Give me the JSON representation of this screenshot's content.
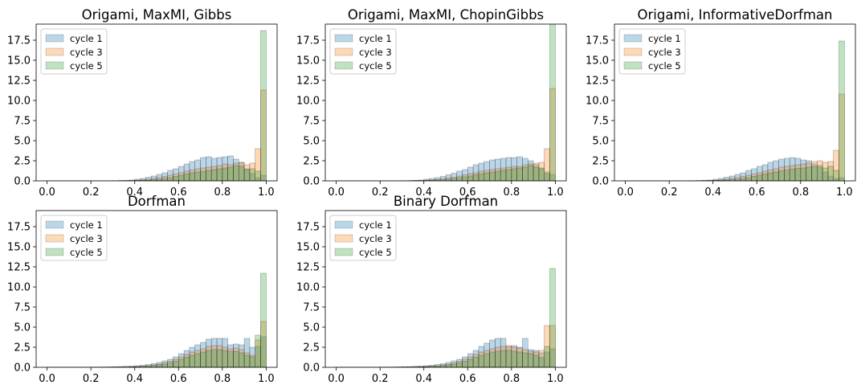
{
  "chart_data": [
    {
      "type": "bar",
      "title": "Origami, MaxMI, Gibbs",
      "x": [
        0.0,
        0.025,
        0.05,
        0.075,
        0.1,
        0.125,
        0.15,
        0.175,
        0.2,
        0.225,
        0.25,
        0.275,
        0.3,
        0.325,
        0.35,
        0.375,
        0.4,
        0.425,
        0.45,
        0.475,
        0.5,
        0.525,
        0.55,
        0.575,
        0.6,
        0.625,
        0.65,
        0.675,
        0.7,
        0.725,
        0.75,
        0.775,
        0.8,
        0.825,
        0.85,
        0.875,
        0.9,
        0.925,
        0.95,
        0.975
      ],
      "xlim": [
        -0.05,
        1.05
      ],
      "ylim": [
        0,
        19.5
      ],
      "xticks": [
        "0.0",
        "0.2",
        "0.4",
        "0.6",
        "0.8",
        "1.0"
      ],
      "yticks": [
        "0.0",
        "2.5",
        "5.0",
        "7.5",
        "10.0",
        "12.5",
        "15.0",
        "17.5"
      ],
      "legend": "upper-left",
      "series": [
        {
          "name": "cycle 1",
          "color": "#1f77b4",
          "values": [
            0.02,
            0.02,
            0.02,
            0.02,
            0.02,
            0.02,
            0.02,
            0.02,
            0.02,
            0.02,
            0.02,
            0.03,
            0.03,
            0.05,
            0.06,
            0.1,
            0.2,
            0.3,
            0.45,
            0.6,
            0.8,
            1.0,
            1.3,
            1.5,
            1.8,
            2.1,
            2.4,
            2.6,
            2.9,
            3.0,
            2.8,
            2.9,
            3.0,
            3.1,
            2.7,
            2.3,
            1.5,
            0.9,
            0.4,
            0.7
          ]
        },
        {
          "name": "cycle 3",
          "color": "#ff7f0e",
          "values": [
            0.0,
            0.0,
            0.0,
            0.0,
            0.0,
            0.0,
            0.0,
            0.0,
            0.0,
            0.0,
            0.0,
            0.0,
            0.01,
            0.02,
            0.03,
            0.05,
            0.08,
            0.12,
            0.2,
            0.3,
            0.4,
            0.55,
            0.7,
            0.85,
            1.0,
            1.2,
            1.35,
            1.5,
            1.6,
            1.7,
            1.8,
            1.9,
            2.1,
            2.0,
            2.2,
            2.3,
            2.0,
            2.2,
            4.0,
            11.3
          ]
        },
        {
          "name": "cycle 5",
          "color": "#2ca02c",
          "values": [
            0.0,
            0.0,
            0.0,
            0.0,
            0.0,
            0.0,
            0.0,
            0.0,
            0.0,
            0.0,
            0.0,
            0.0,
            0.0,
            0.0,
            0.01,
            0.02,
            0.04,
            0.07,
            0.1,
            0.15,
            0.2,
            0.3,
            0.4,
            0.55,
            0.7,
            0.85,
            1.0,
            1.1,
            1.2,
            1.3,
            1.4,
            1.5,
            1.6,
            1.7,
            1.9,
            1.8,
            1.4,
            1.5,
            1.2,
            18.7
          ]
        }
      ]
    },
    {
      "type": "bar",
      "title": "Origami, MaxMI, ChopinGibbs",
      "x": [
        0.0,
        0.025,
        0.05,
        0.075,
        0.1,
        0.125,
        0.15,
        0.175,
        0.2,
        0.225,
        0.25,
        0.275,
        0.3,
        0.325,
        0.35,
        0.375,
        0.4,
        0.425,
        0.45,
        0.475,
        0.5,
        0.525,
        0.55,
        0.575,
        0.6,
        0.625,
        0.65,
        0.675,
        0.7,
        0.725,
        0.75,
        0.775,
        0.8,
        0.825,
        0.85,
        0.875,
        0.9,
        0.925,
        0.95,
        0.975
      ],
      "xlim": [
        -0.05,
        1.05
      ],
      "ylim": [
        0,
        19.5
      ],
      "xticks": [
        "0.0",
        "0.2",
        "0.4",
        "0.6",
        "0.8",
        "1.0"
      ],
      "yticks": [
        "0.0",
        "2.5",
        "5.0",
        "7.5",
        "10.0",
        "12.5",
        "15.0",
        "17.5"
      ],
      "legend": "upper-left",
      "series": [
        {
          "name": "cycle 1",
          "color": "#1f77b4",
          "values": [
            0.02,
            0.02,
            0.02,
            0.02,
            0.02,
            0.02,
            0.02,
            0.02,
            0.02,
            0.02,
            0.02,
            0.03,
            0.03,
            0.05,
            0.07,
            0.1,
            0.2,
            0.3,
            0.4,
            0.55,
            0.75,
            0.95,
            1.2,
            1.4,
            1.7,
            2.0,
            2.2,
            2.4,
            2.6,
            2.7,
            2.8,
            2.9,
            2.9,
            3.0,
            2.8,
            2.5,
            2.0,
            1.5,
            0.9,
            0.8
          ]
        },
        {
          "name": "cycle 3",
          "color": "#ff7f0e",
          "values": [
            0.0,
            0.0,
            0.0,
            0.0,
            0.0,
            0.0,
            0.0,
            0.0,
            0.0,
            0.0,
            0.0,
            0.0,
            0.01,
            0.02,
            0.03,
            0.05,
            0.08,
            0.12,
            0.18,
            0.25,
            0.35,
            0.45,
            0.6,
            0.75,
            0.9,
            1.0,
            1.2,
            1.3,
            1.4,
            1.5,
            1.6,
            1.7,
            1.8,
            1.8,
            2.0,
            2.1,
            2.2,
            2.3,
            4.0,
            11.5
          ]
        },
        {
          "name": "cycle 5",
          "color": "#2ca02c",
          "values": [
            0.0,
            0.0,
            0.0,
            0.0,
            0.0,
            0.0,
            0.0,
            0.0,
            0.0,
            0.0,
            0.0,
            0.0,
            0.0,
            0.0,
            0.01,
            0.02,
            0.04,
            0.06,
            0.1,
            0.14,
            0.2,
            0.3,
            0.4,
            0.5,
            0.6,
            0.75,
            0.85,
            1.0,
            1.1,
            1.2,
            1.3,
            1.4,
            1.5,
            1.6,
            1.7,
            1.9,
            1.7,
            1.6,
            1.1,
            19.5
          ]
        }
      ]
    },
    {
      "type": "bar",
      "title": "Origami, InformativeDorfman",
      "x": [
        0.0,
        0.025,
        0.05,
        0.075,
        0.1,
        0.125,
        0.15,
        0.175,
        0.2,
        0.225,
        0.25,
        0.275,
        0.3,
        0.325,
        0.35,
        0.375,
        0.4,
        0.425,
        0.45,
        0.475,
        0.5,
        0.525,
        0.55,
        0.575,
        0.6,
        0.625,
        0.65,
        0.675,
        0.7,
        0.725,
        0.75,
        0.775,
        0.8,
        0.825,
        0.85,
        0.875,
        0.9,
        0.925,
        0.95,
        0.975
      ],
      "xlim": [
        -0.05,
        1.05
      ],
      "ylim": [
        0,
        19.5
      ],
      "xticks": [
        "0.0",
        "0.2",
        "0.4",
        "0.6",
        "0.8",
        "1.0"
      ],
      "yticks": [
        "0.0",
        "2.5",
        "5.0",
        "7.5",
        "10.0",
        "12.5",
        "15.0",
        "17.5"
      ],
      "legend": "upper-left",
      "series": [
        {
          "name": "cycle 1",
          "color": "#1f77b4",
          "values": [
            0.02,
            0.02,
            0.02,
            0.02,
            0.02,
            0.02,
            0.02,
            0.02,
            0.02,
            0.02,
            0.02,
            0.03,
            0.03,
            0.05,
            0.07,
            0.1,
            0.2,
            0.3,
            0.45,
            0.6,
            0.8,
            1.0,
            1.3,
            1.5,
            1.8,
            2.0,
            2.3,
            2.5,
            2.7,
            2.8,
            2.9,
            2.8,
            2.6,
            2.5,
            2.1,
            1.7,
            1.1,
            0.6,
            0.3,
            0.4
          ]
        },
        {
          "name": "cycle 3",
          "color": "#ff7f0e",
          "values": [
            0.0,
            0.0,
            0.0,
            0.0,
            0.0,
            0.0,
            0.0,
            0.0,
            0.0,
            0.0,
            0.0,
            0.0,
            0.01,
            0.02,
            0.03,
            0.05,
            0.08,
            0.12,
            0.2,
            0.3,
            0.4,
            0.55,
            0.7,
            0.85,
            1.0,
            1.2,
            1.35,
            1.5,
            1.7,
            1.8,
            1.9,
            2.0,
            2.1,
            2.2,
            2.4,
            2.5,
            2.3,
            2.4,
            3.8,
            10.8
          ]
        },
        {
          "name": "cycle 5",
          "color": "#2ca02c",
          "values": [
            0.0,
            0.0,
            0.0,
            0.0,
            0.0,
            0.0,
            0.0,
            0.0,
            0.0,
            0.0,
            0.0,
            0.0,
            0.0,
            0.0,
            0.01,
            0.02,
            0.04,
            0.07,
            0.1,
            0.15,
            0.2,
            0.3,
            0.4,
            0.55,
            0.7,
            0.85,
            1.0,
            1.1,
            1.25,
            1.35,
            1.45,
            1.55,
            1.6,
            1.7,
            1.8,
            1.9,
            1.6,
            1.8,
            1.3,
            17.4
          ]
        }
      ]
    },
    {
      "type": "bar",
      "title": "Dorfman",
      "x": [
        0.0,
        0.025,
        0.05,
        0.075,
        0.1,
        0.125,
        0.15,
        0.175,
        0.2,
        0.225,
        0.25,
        0.275,
        0.3,
        0.325,
        0.35,
        0.375,
        0.4,
        0.425,
        0.45,
        0.475,
        0.5,
        0.525,
        0.55,
        0.575,
        0.6,
        0.625,
        0.65,
        0.675,
        0.7,
        0.725,
        0.75,
        0.775,
        0.8,
        0.825,
        0.85,
        0.875,
        0.9,
        0.925,
        0.95,
        0.975
      ],
      "xlim": [
        -0.05,
        1.05
      ],
      "ylim": [
        0,
        19.5
      ],
      "xticks": [
        "0.0",
        "0.2",
        "0.4",
        "0.6",
        "0.8",
        "1.0"
      ],
      "yticks": [
        "0.0",
        "2.5",
        "5.0",
        "7.5",
        "10.0",
        "12.5",
        "15.0",
        "17.5"
      ],
      "legend": "upper-left",
      "series": [
        {
          "name": "cycle 1",
          "color": "#1f77b4",
          "values": [
            0.03,
            0.03,
            0.03,
            0.03,
            0.03,
            0.03,
            0.03,
            0.03,
            0.04,
            0.04,
            0.05,
            0.06,
            0.08,
            0.1,
            0.12,
            0.15,
            0.2,
            0.25,
            0.35,
            0.45,
            0.6,
            0.8,
            1.0,
            1.3,
            1.7,
            2.1,
            2.5,
            2.8,
            3.1,
            3.5,
            3.6,
            3.6,
            3.6,
            2.8,
            2.9,
            2.8,
            3.6,
            2.5,
            2.6,
            3.8
          ]
        },
        {
          "name": "cycle 3",
          "color": "#ff7f0e",
          "values": [
            0.0,
            0.0,
            0.0,
            0.0,
            0.0,
            0.0,
            0.0,
            0.0,
            0.0,
            0.01,
            0.01,
            0.02,
            0.03,
            0.04,
            0.05,
            0.08,
            0.1,
            0.15,
            0.2,
            0.3,
            0.4,
            0.55,
            0.75,
            1.0,
            1.3,
            1.6,
            1.9,
            2.1,
            2.3,
            2.6,
            2.7,
            2.7,
            2.5,
            2.3,
            2.4,
            2.2,
            1.8,
            1.5,
            3.4,
            5.7
          ]
        },
        {
          "name": "cycle 5",
          "color": "#2ca02c",
          "values": [
            0.0,
            0.0,
            0.0,
            0.0,
            0.0,
            0.0,
            0.0,
            0.0,
            0.0,
            0.0,
            0.0,
            0.01,
            0.02,
            0.03,
            0.04,
            0.06,
            0.08,
            0.12,
            0.16,
            0.22,
            0.3,
            0.4,
            0.55,
            0.75,
            1.0,
            1.25,
            1.5,
            1.7,
            1.9,
            2.1,
            2.2,
            2.2,
            2.1,
            2.0,
            2.0,
            1.8,
            1.5,
            1.3,
            4.0,
            11.7
          ]
        }
      ]
    },
    {
      "type": "bar",
      "title": "Binary Dorfman",
      "x": [
        0.0,
        0.025,
        0.05,
        0.075,
        0.1,
        0.125,
        0.15,
        0.175,
        0.2,
        0.225,
        0.25,
        0.275,
        0.3,
        0.325,
        0.35,
        0.375,
        0.4,
        0.425,
        0.45,
        0.475,
        0.5,
        0.525,
        0.55,
        0.575,
        0.6,
        0.625,
        0.65,
        0.675,
        0.7,
        0.725,
        0.75,
        0.775,
        0.8,
        0.825,
        0.85,
        0.875,
        0.9,
        0.925,
        0.95,
        0.975
      ],
      "xlim": [
        -0.05,
        1.05
      ],
      "ylim": [
        0,
        19.5
      ],
      "xticks": [
        "0.0",
        "0.2",
        "0.4",
        "0.6",
        "0.8",
        "1.0"
      ],
      "yticks": [
        "0.0",
        "2.5",
        "5.0",
        "7.5",
        "10.0",
        "12.5",
        "15.0",
        "17.5"
      ],
      "legend": "upper-left",
      "series": [
        {
          "name": "cycle 1",
          "color": "#1f77b4",
          "values": [
            0.03,
            0.03,
            0.03,
            0.03,
            0.03,
            0.03,
            0.03,
            0.03,
            0.04,
            0.04,
            0.05,
            0.06,
            0.08,
            0.1,
            0.12,
            0.15,
            0.2,
            0.25,
            0.35,
            0.45,
            0.6,
            0.8,
            1.0,
            1.3,
            1.7,
            2.1,
            2.6,
            3.0,
            3.4,
            3.6,
            3.6,
            2.6,
            2.7,
            2.5,
            3.6,
            2.2,
            2.1,
            1.8,
            1.9,
            2.3
          ]
        },
        {
          "name": "cycle 3",
          "color": "#ff7f0e",
          "values": [
            0.0,
            0.0,
            0.0,
            0.0,
            0.0,
            0.0,
            0.0,
            0.0,
            0.0,
            0.01,
            0.01,
            0.02,
            0.03,
            0.04,
            0.05,
            0.08,
            0.1,
            0.15,
            0.2,
            0.3,
            0.4,
            0.55,
            0.75,
            1.0,
            1.3,
            1.6,
            1.9,
            2.1,
            2.3,
            2.5,
            2.6,
            2.7,
            2.5,
            2.4,
            2.2,
            2.0,
            1.9,
            2.1,
            5.2,
            5.2
          ]
        },
        {
          "name": "cycle 5",
          "color": "#2ca02c",
          "values": [
            0.0,
            0.0,
            0.0,
            0.0,
            0.0,
            0.0,
            0.0,
            0.0,
            0.0,
            0.0,
            0.0,
            0.01,
            0.02,
            0.03,
            0.04,
            0.06,
            0.08,
            0.12,
            0.16,
            0.22,
            0.3,
            0.4,
            0.55,
            0.75,
            1.0,
            1.25,
            1.5,
            1.7,
            1.9,
            2.0,
            2.1,
            2.1,
            2.0,
            1.9,
            1.8,
            1.7,
            1.5,
            1.2,
            2.6,
            12.3
          ]
        }
      ]
    }
  ]
}
